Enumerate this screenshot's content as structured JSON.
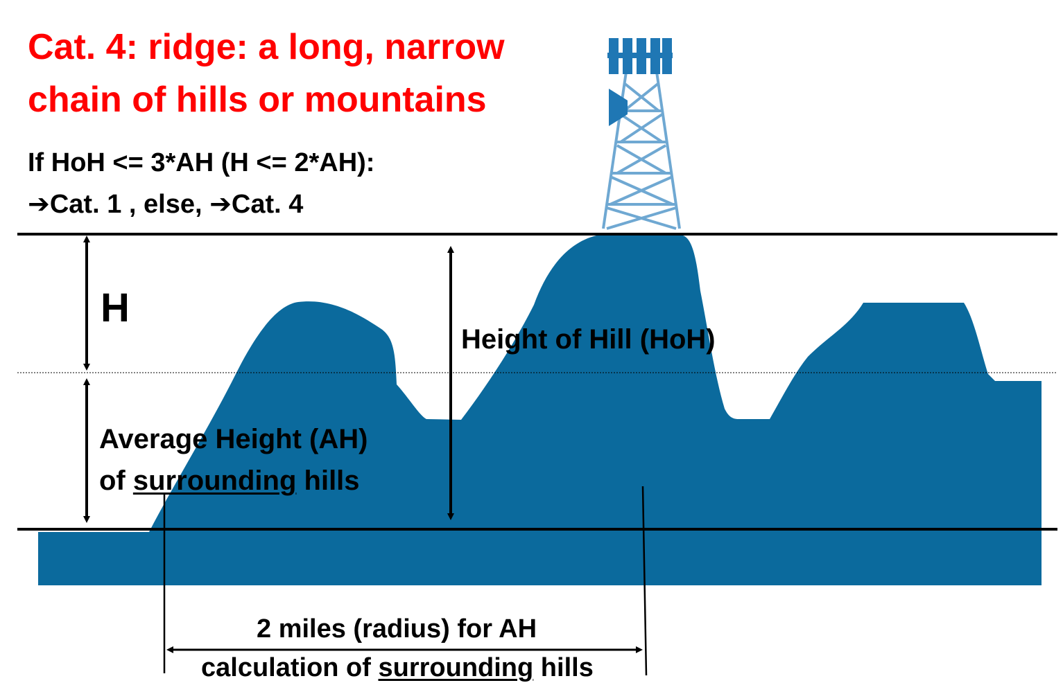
{
  "title": {
    "line1": "Cat. 4: ridge: a long, narrow",
    "line2": "chain of hills or mountains"
  },
  "rule": {
    "condition": "If HoH <= 3*AH (H <= 2*AH):",
    "arrow_glyph": "➔",
    "outcome_1": "Cat. 1 , else, ",
    "outcome_2": "Cat. 4"
  },
  "labels": {
    "h": "H",
    "hoh": "Height of Hill (HoH)",
    "ah_line1": "Average Height (AH)",
    "ah_line2_prefix": "of ",
    "ah_line2_underlined": "surrounding",
    "ah_line2_suffix": " hills",
    "radius_line1": "2 miles (radius) for AH",
    "radius_line2_prefix": "calculation of ",
    "radius_line2_underlined": "surrounding",
    "radius_line2_suffix": " hills"
  },
  "colors": {
    "terrain": "#0b6a9d",
    "tower": "#1f77b4",
    "title": "#ff0000",
    "lines": "#000000"
  },
  "icons": [
    "cell-tower-icon",
    "arrow-right-icon"
  ]
}
